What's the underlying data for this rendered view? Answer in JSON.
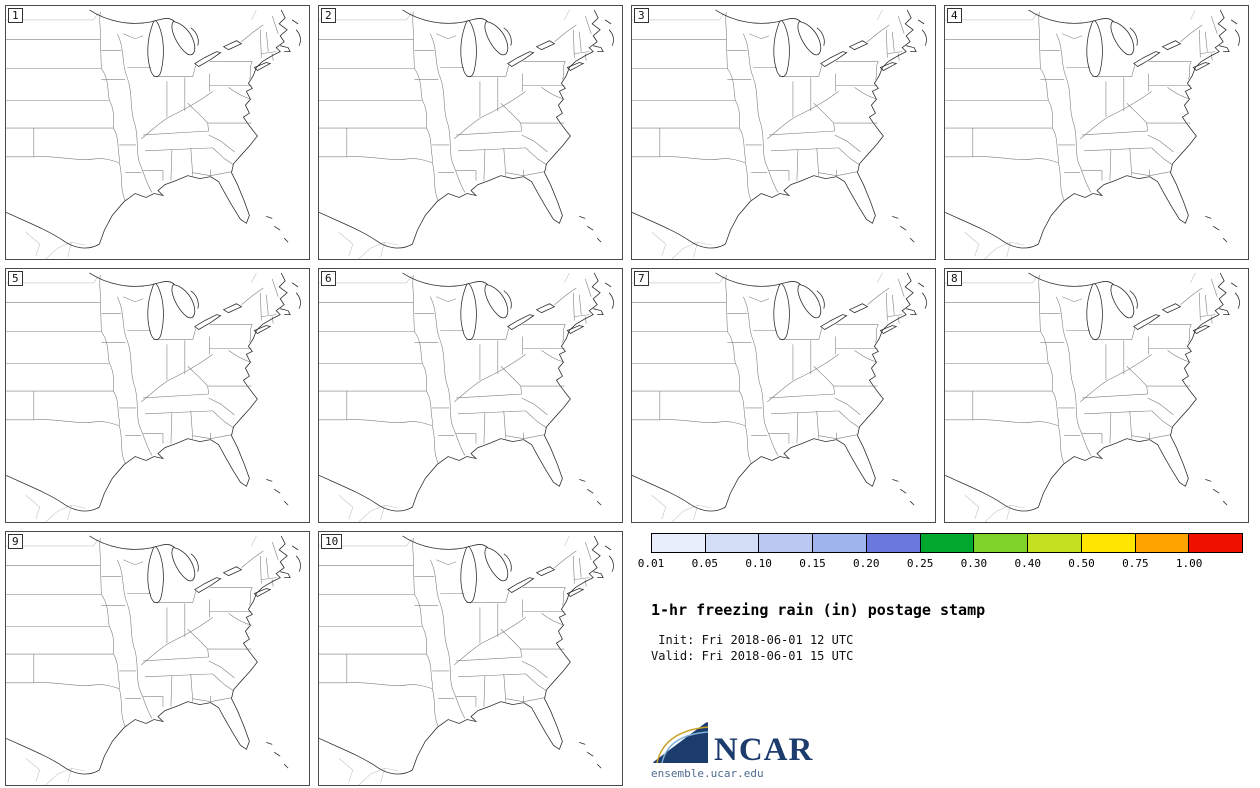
{
  "title": "1-hr freezing rain (in) postage stamp",
  "init_line": " Init: Fri 2018-06-01 12 UTC",
  "valid_line": "Valid: Fri 2018-06-01 15 UTC",
  "panels": [
    "1",
    "2",
    "3",
    "4",
    "5",
    "6",
    "7",
    "8",
    "9",
    "10"
  ],
  "colorbar": {
    "ticks": [
      "0.01",
      "0.05",
      "0.10",
      "0.15",
      "0.20",
      "0.25",
      "0.30",
      "0.40",
      "0.50",
      "0.75",
      "1.00"
    ],
    "colors": [
      "#e8eefb",
      "#d2def6",
      "#b9c9f0",
      "#9fb4ea",
      "#6b78dd",
      "#00a82e",
      "#7ed32b",
      "#c3e021",
      "#ffe600",
      "#ffa300",
      "#f01000"
    ]
  },
  "logo": {
    "text": "NCAR",
    "url": "ensemble.ucar.edu"
  }
}
